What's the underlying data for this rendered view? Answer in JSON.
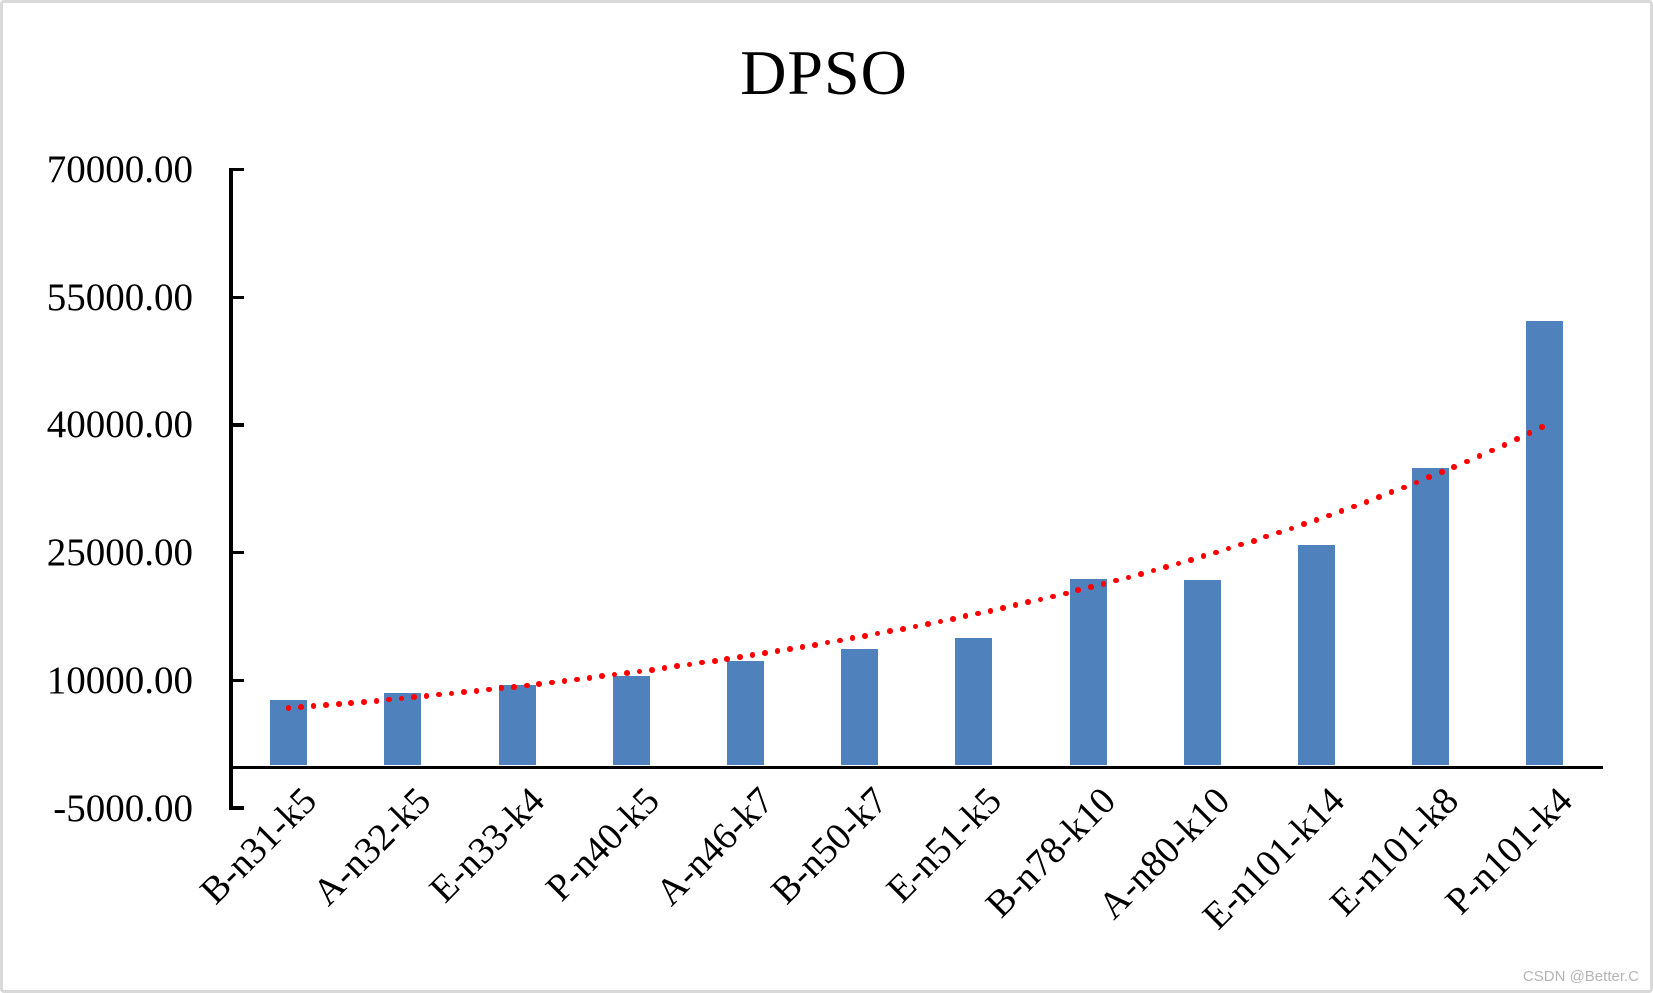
{
  "page": {
    "watermark": "CSDN @Better.C"
  },
  "chart_data": {
    "type": "bar",
    "title": "DPSO",
    "categories": [
      "B-n31-k5",
      "A-n32-k5",
      "E-n33-k4",
      "P-n40-k5",
      "A-n46-k7",
      "B-n50-k7",
      "E-n51-k5",
      "B-n78-k10",
      "A-n80-k10",
      "E-n101-k14",
      "E-n101-k8",
      "P-n101-k4"
    ],
    "values": [
      7700,
      8500,
      9450,
      10550,
      12300,
      13650,
      14950,
      21900,
      21800,
      25900,
      34900,
      52200
    ],
    "bar_color": "#4F81BD",
    "y_axis": {
      "tick_labels": [
        "70000.00",
        "55000.00",
        "40000.00",
        "25000.00",
        "10000.00",
        "-5000.00"
      ],
      "tick_values": [
        70000,
        55000,
        40000,
        25000,
        10000,
        -5000
      ],
      "min": -5000,
      "max": 70000
    },
    "trendline": {
      "type": "exponential",
      "style": "round-dot",
      "color": "#FF0000",
      "start_value": 6720,
      "end_value": 39890
    },
    "grid": false,
    "legend": false
  }
}
